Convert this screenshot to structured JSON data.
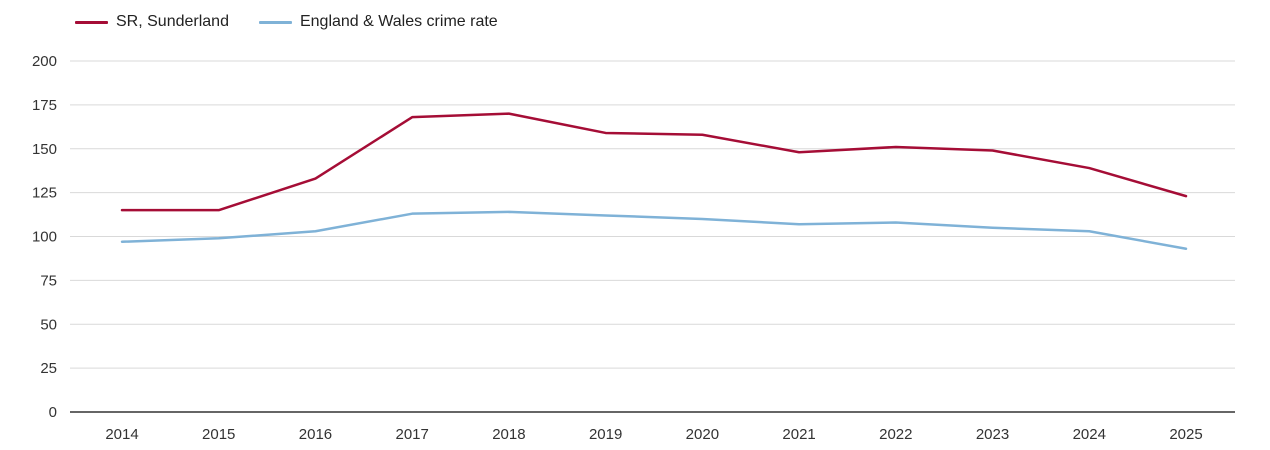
{
  "chart_data": {
    "type": "line",
    "title": "",
    "xlabel": "",
    "ylabel": "",
    "categories": [
      "2014",
      "2015",
      "2016",
      "2017",
      "2018",
      "2019",
      "2020",
      "2021",
      "2022",
      "2023",
      "2024",
      "2025"
    ],
    "series": [
      {
        "name": "SR, Sunderland",
        "color": "#a50d36",
        "values": [
          115,
          115,
          133,
          168,
          170,
          159,
          158,
          148,
          151,
          149,
          139,
          123
        ]
      },
      {
        "name": "England & Wales crime rate",
        "color": "#7fb2d7",
        "values": [
          97,
          99,
          103,
          113,
          114,
          112,
          110,
          107,
          108,
          105,
          103,
          93
        ]
      }
    ],
    "ylim": [
      0,
      200
    ],
    "y_ticks": [
      0,
      25,
      50,
      75,
      100,
      125,
      150,
      175,
      200
    ],
    "grid": "horizontal",
    "legend_position": "top-left",
    "colors": {
      "axis": "#333333",
      "gridline": "#d9d9d9",
      "tick_label": "#333333",
      "background": "#ffffff"
    }
  }
}
